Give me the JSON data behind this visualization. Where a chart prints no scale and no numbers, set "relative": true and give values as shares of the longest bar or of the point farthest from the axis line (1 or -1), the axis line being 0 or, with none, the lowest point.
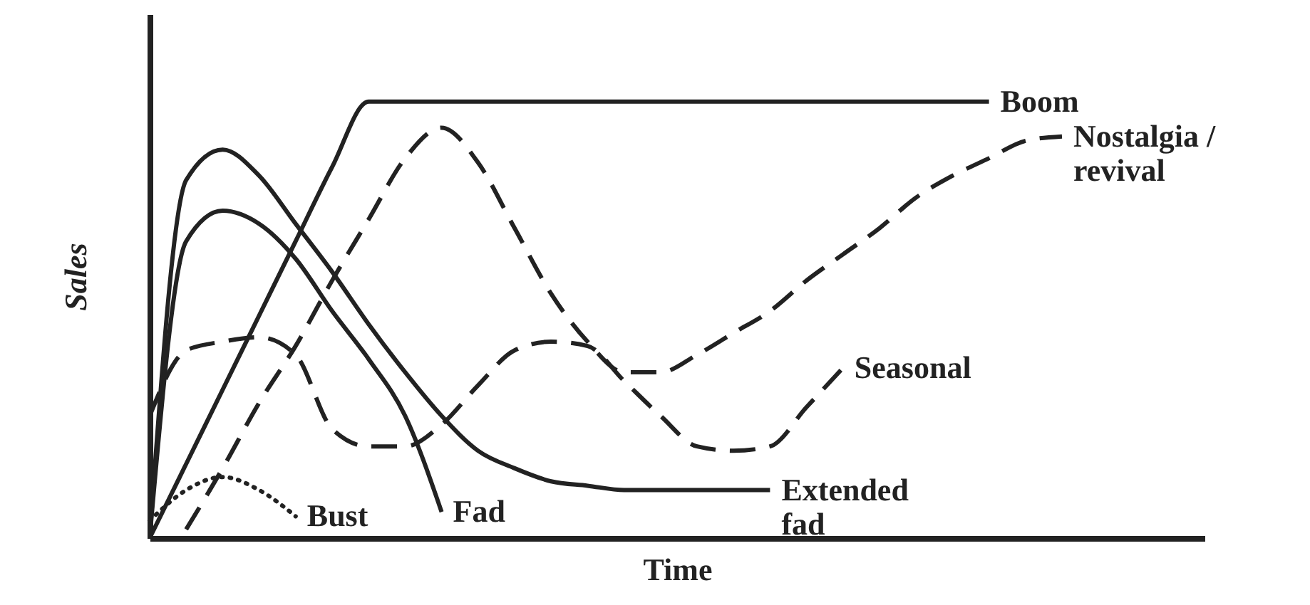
{
  "chart_data": {
    "type": "line",
    "relative": true,
    "xlabel": "Time",
    "ylabel": "Sales",
    "categories": [
      null,
      null,
      null,
      null,
      null,
      null,
      null,
      null,
      null,
      null,
      null,
      null,
      null,
      null,
      null,
      null,
      null,
      null,
      null,
      null,
      null,
      null,
      null,
      null,
      null,
      null
    ],
    "series": [
      {
        "name": "Boom",
        "color": "#222222",
        "line_style": "solid",
        "values": [
          0,
          0.17,
          0.34,
          0.51,
          0.68,
          0.85,
          1,
          1,
          1,
          1,
          1,
          1,
          1,
          1,
          1,
          1,
          1,
          1,
          1,
          1,
          1,
          1,
          1,
          1,
          null,
          null
        ]
      },
      {
        "name": "Nostalgia / revival",
        "color": "#222222",
        "line_style": "dashed",
        "values": [
          null,
          0.02,
          0.16,
          0.31,
          0.44,
          0.59,
          0.73,
          0.87,
          0.94,
          0.86,
          0.71,
          0.56,
          0.45,
          0.38,
          0.38,
          0.42,
          0.47,
          0.52,
          0.59,
          0.65,
          0.71,
          0.78,
          0.83,
          0.87,
          0.91,
          0.92
        ]
      },
      {
        "name": "Seasonal",
        "color": "#222222",
        "line_style": "dashed",
        "values": [
          0.28,
          0.43,
          0.45,
          0.46,
          0.42,
          0.25,
          0.21,
          0.21,
          0.26,
          0.35,
          0.43,
          0.45,
          0.44,
          0.36,
          0.28,
          0.21,
          0.2,
          0.21,
          0.3,
          0.39,
          null,
          null,
          null,
          null,
          null,
          null
        ]
      },
      {
        "name": "Extended fad",
        "color": "#222222",
        "line_style": "solid",
        "values": [
          0,
          0.82,
          0.89,
          0.83,
          0.72,
          0.61,
          0.49,
          0.38,
          0.28,
          0.2,
          0.16,
          0.13,
          0.12,
          0.11,
          0.11,
          0.11,
          0.11,
          0.11,
          null,
          null,
          null,
          null,
          null,
          null,
          null,
          null
        ]
      },
      {
        "name": "Fad",
        "color": "#222222",
        "line_style": "solid",
        "values": [
          0,
          0.68,
          0.75,
          0.72,
          0.64,
          0.52,
          0.41,
          0.28,
          0.06,
          null,
          null,
          null,
          null,
          null,
          null,
          null,
          null,
          null,
          null,
          null,
          null,
          null,
          null,
          null,
          null,
          null
        ]
      },
      {
        "name": "Bust",
        "color": "#222222",
        "line_style": "dotted",
        "values": [
          0.04,
          0.11,
          0.14,
          0.11,
          0.05,
          null,
          null,
          null,
          null,
          null,
          null,
          null,
          null,
          null,
          null,
          null,
          null,
          null,
          null,
          null,
          null,
          null,
          null,
          null,
          null,
          null
        ]
      }
    ]
  }
}
